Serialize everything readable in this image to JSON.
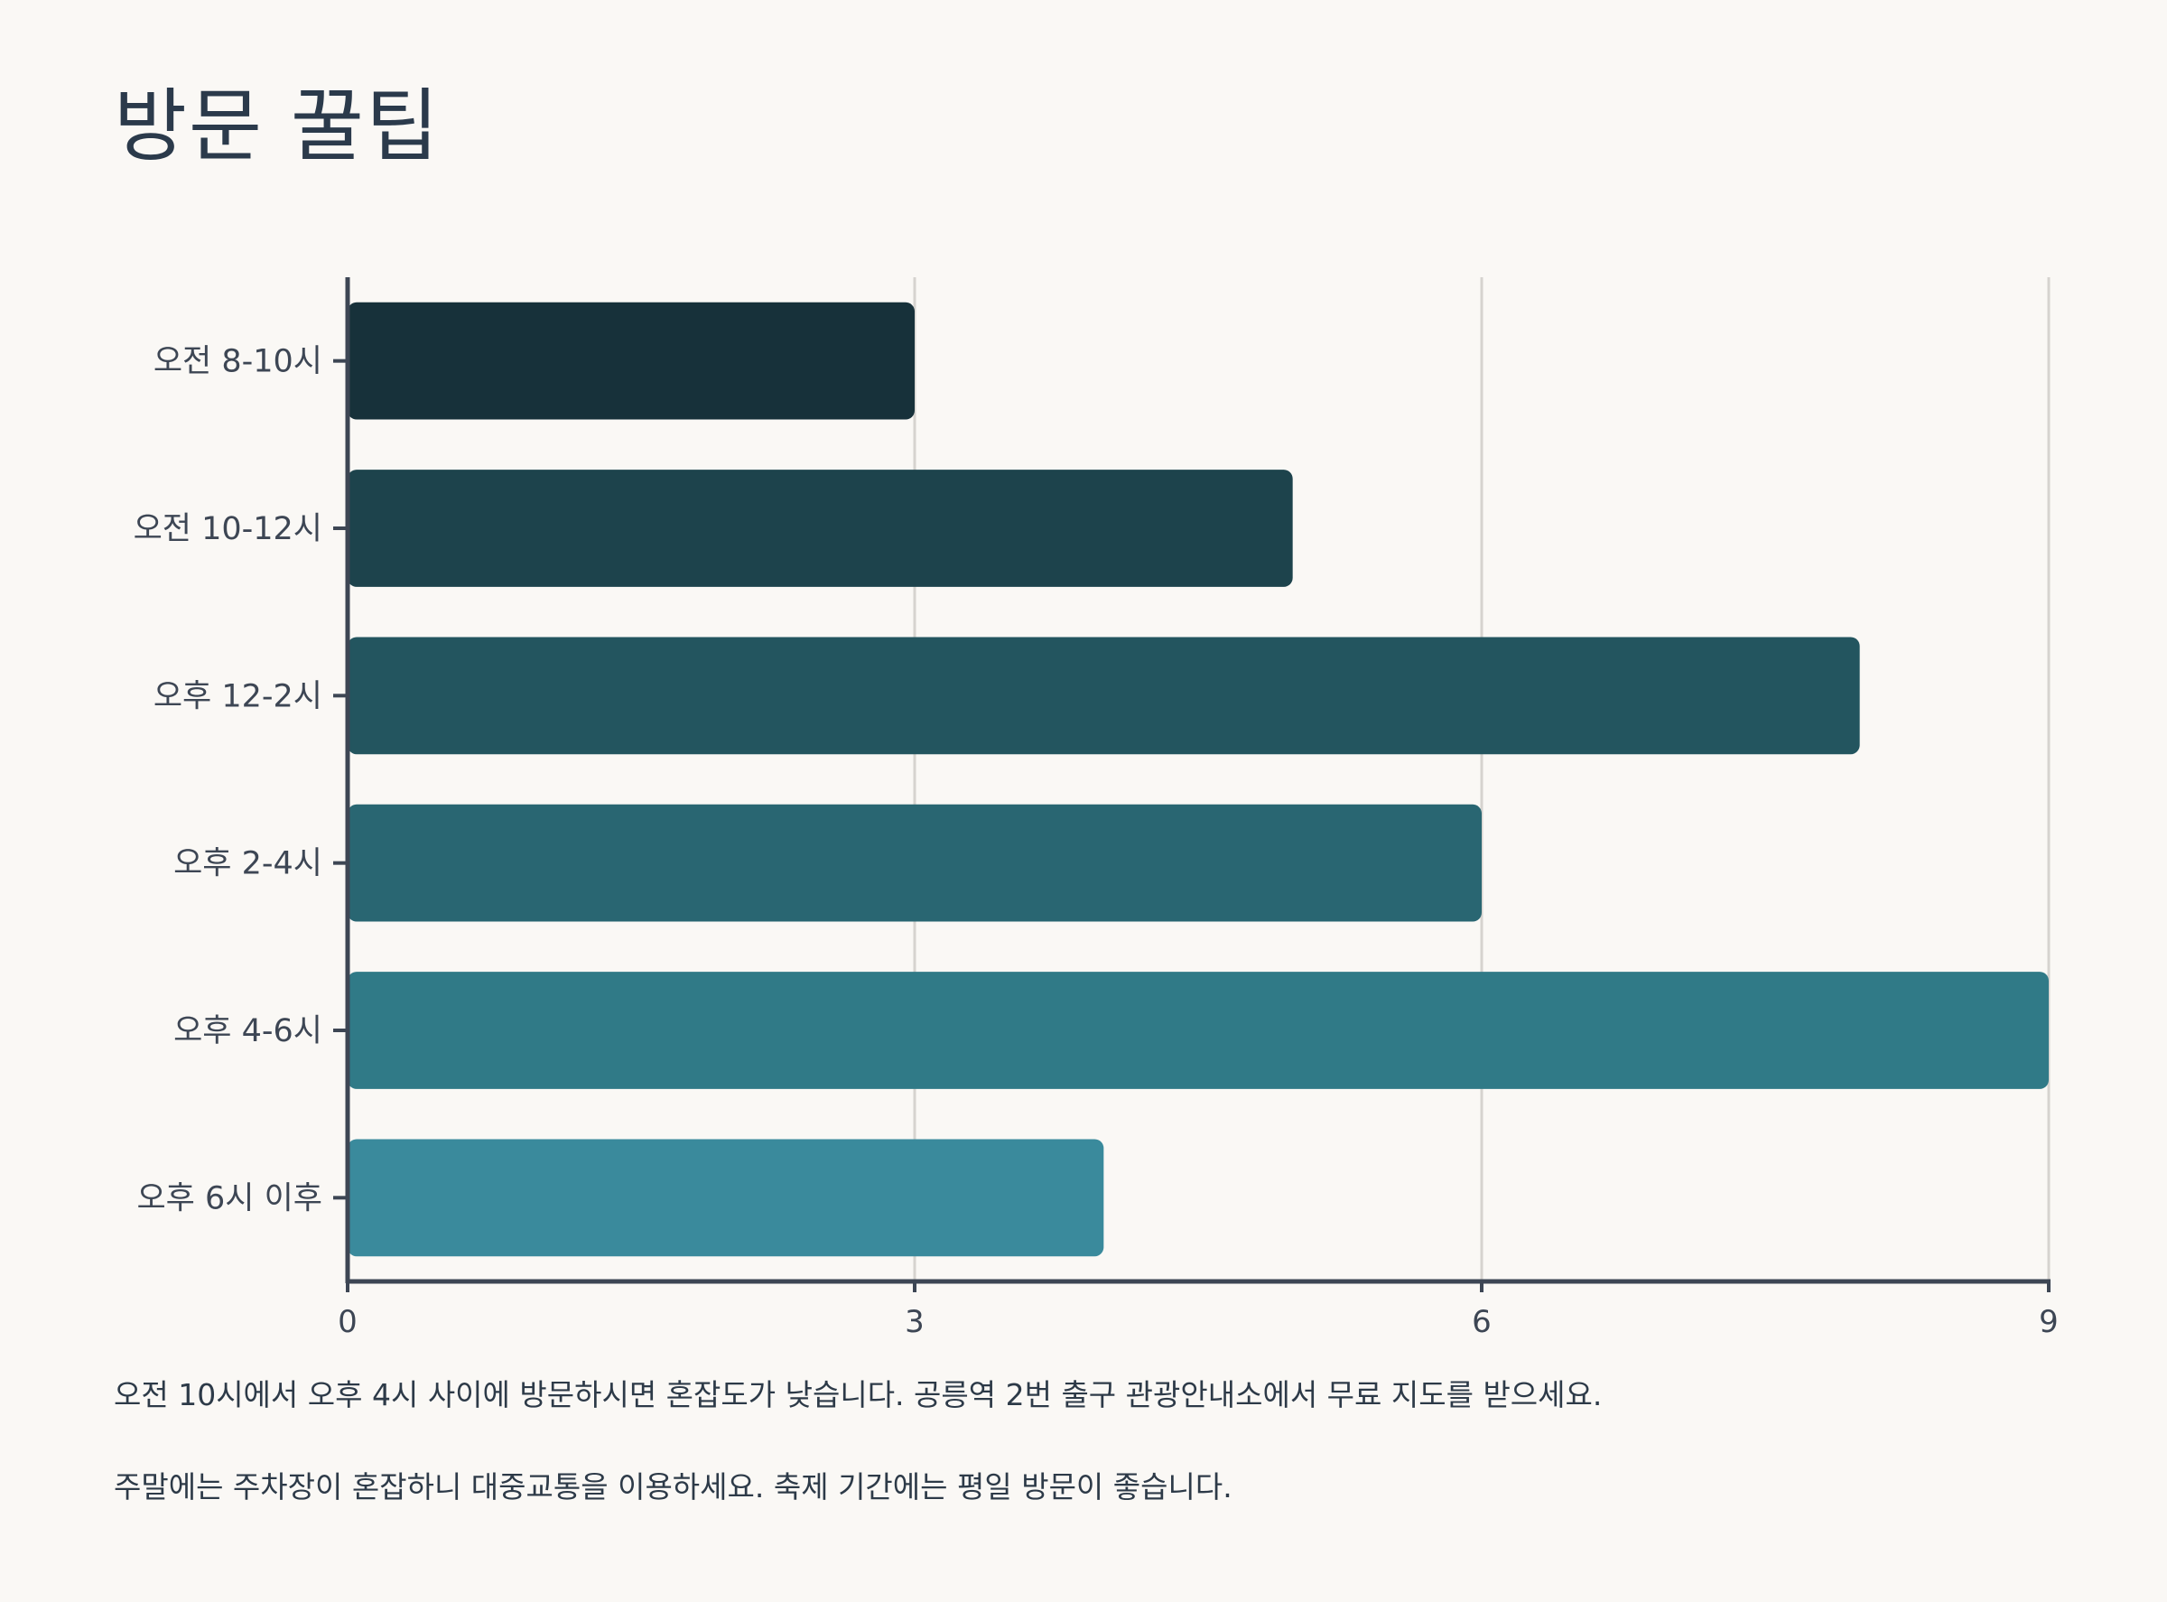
{
  "title": "방문 꿀팁",
  "notes": [
    "오전 10시에서 오후 4시 사이에 방문하시면 혼잡도가 낮습니다. 공릉역 2번 출구 관광안내소에서 무료 지도를 받으세요.",
    "주말에는 주차장이 혼잡하니 대중교통을 이용하세요. 축제 기간에는 평일 방문이 좋습니다."
  ],
  "chart_data": {
    "type": "bar",
    "orientation": "horizontal",
    "title": "방문 꿀팁",
    "xlabel": "",
    "ylabel": "",
    "categories": [
      "오전 8-10시",
      "오전 10-12시",
      "오후 12-2시",
      "오후 2-4시",
      "오후 4-6시",
      "오후 6시 이후"
    ],
    "values": [
      3,
      5,
      8,
      6,
      9,
      4
    ],
    "xlim": [
      0,
      9
    ],
    "xticks": [
      "0",
      "3",
      "6",
      "9"
    ],
    "grid": "vertical",
    "legend": "none",
    "colors": [
      "#17313a",
      "#1d434c",
      "#23555f",
      "#296672",
      "#307a87",
      "#3a8a9c"
    ],
    "axis_color": "#3d4654",
    "grid_color": "#d6d3cf"
  }
}
